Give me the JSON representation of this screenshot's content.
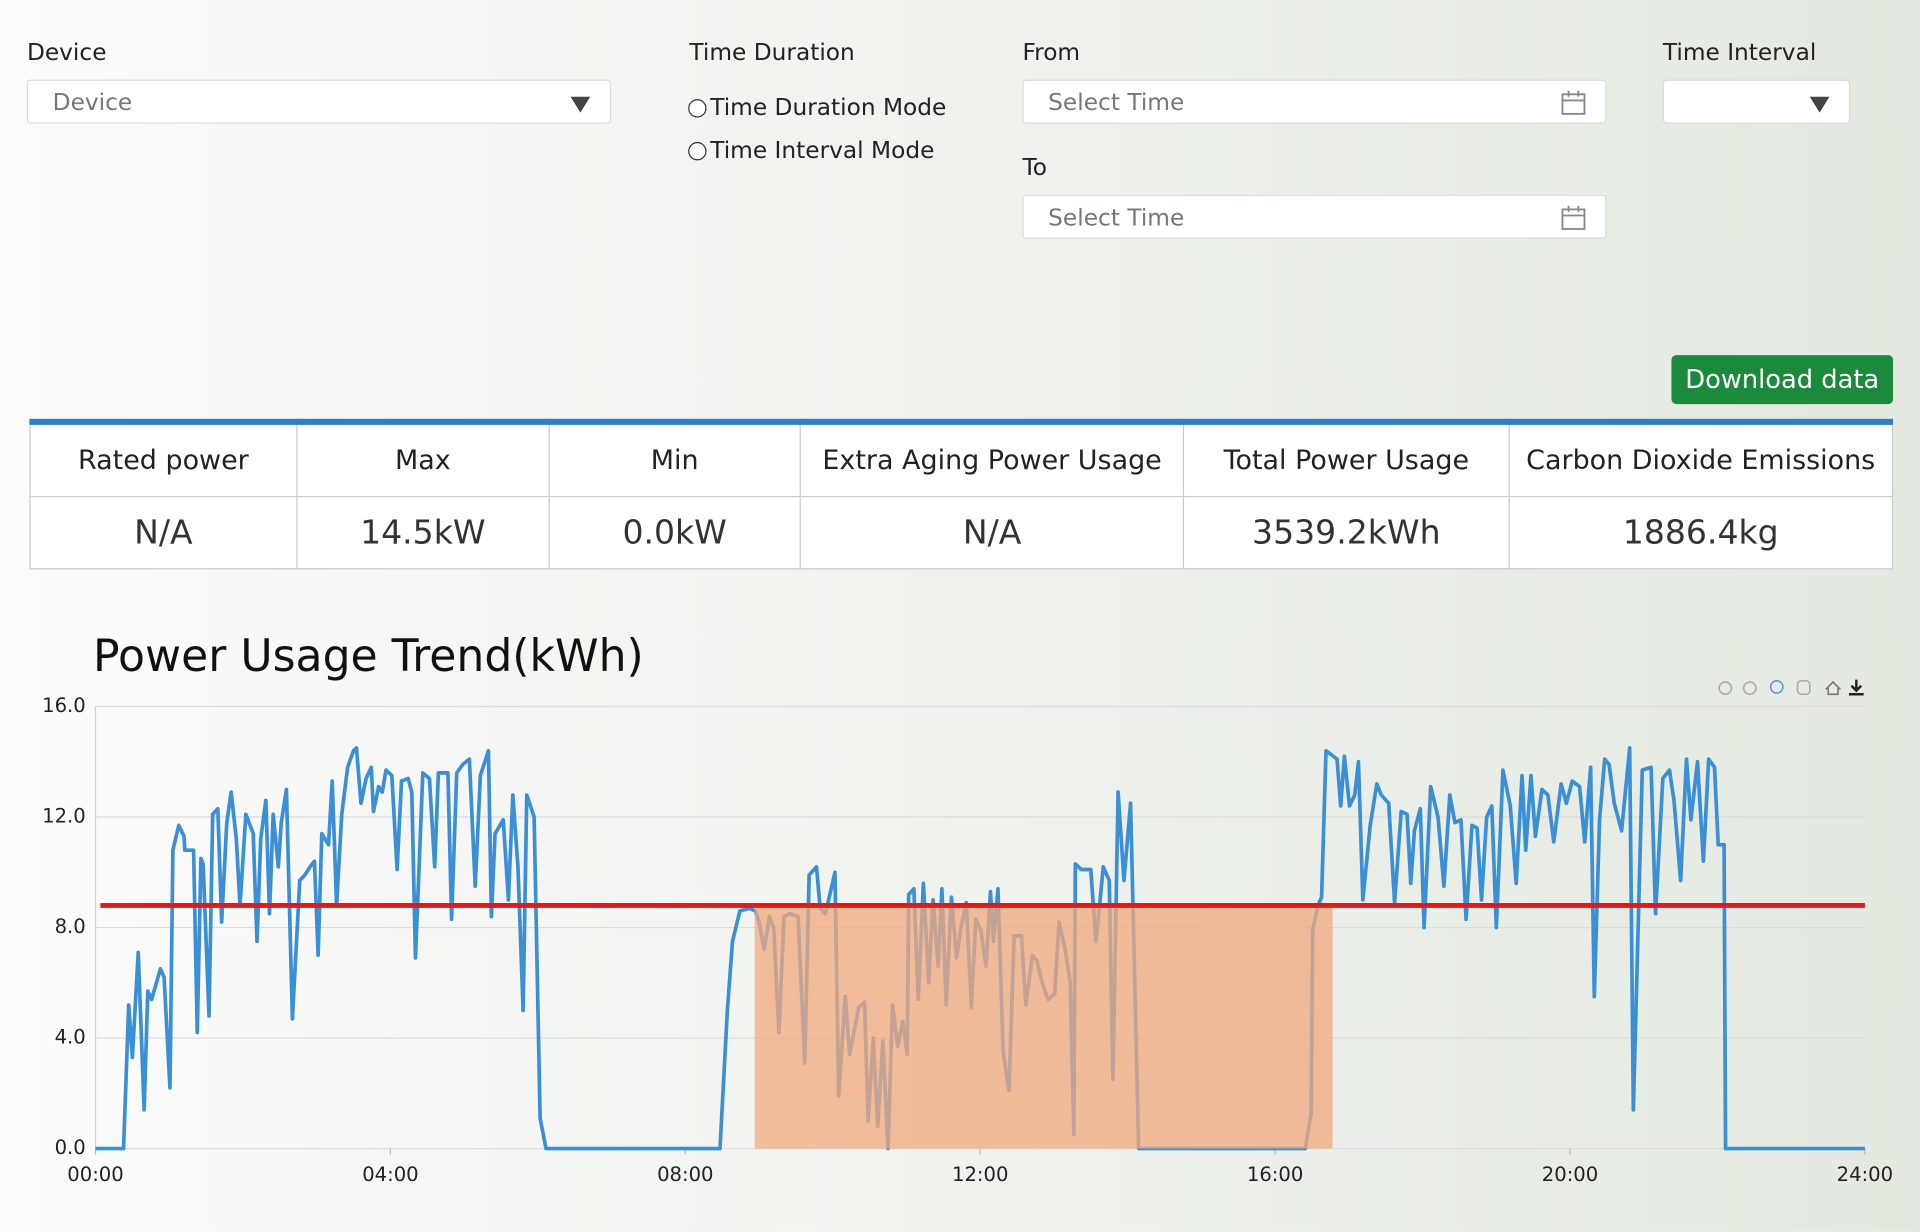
{
  "form": {
    "device": {
      "label": "Device",
      "placeholder": "Device"
    },
    "time_duration": {
      "label": "Time Duration",
      "options": [
        "Time Duration Mode",
        "Time Interval Mode"
      ]
    },
    "from": {
      "label": "From",
      "placeholder": "Select Time"
    },
    "to": {
      "label": "To",
      "placeholder": "Select Time"
    },
    "time_interval": {
      "label": "Time Interval"
    },
    "download_button": "Download data"
  },
  "table": {
    "headers": [
      "Rated power",
      "Max",
      "Min",
      "Extra Aging Power Usage",
      "Total Power Usage",
      "Carbon Dioxide Emissions"
    ],
    "rows": [
      [
        "N/A",
        "14.5kW",
        "0.0kW",
        "N/A",
        "3539.2kWh",
        "1886.4kg"
      ]
    ]
  },
  "chart_data": {
    "type": "line",
    "title": "Power Usage Trend(kWh)",
    "color": "#3a8fd6",
    "x": [
      0,
      0.38,
      0.45,
      0.5,
      0.58,
      0.66,
      0.71,
      0.76,
      0.88,
      0.93,
      1.01,
      1.05,
      1.13,
      1.2,
      1.21,
      1.33,
      1.38,
      1.43,
      1.46,
      1.54,
      1.59,
      1.66,
      1.71,
      1.78,
      1.84,
      1.91,
      1.96,
      2.04,
      2.14,
      2.19,
      2.24,
      2.31,
      2.36,
      2.41,
      2.48,
      2.52,
      2.59,
      2.67,
      2.77,
      2.84,
      2.91,
      2.97,
      3.02,
      3.07,
      3.16,
      3.21,
      3.27,
      3.34,
      3.42,
      3.5,
      3.54,
      3.6,
      3.67,
      3.74,
      3.77,
      3.84,
      3.89,
      3.94,
      4.02,
      4.09,
      4.15,
      4.24,
      4.29,
      4.34,
      4.44,
      4.53,
      4.6,
      4.65,
      4.78,
      4.83,
      4.9,
      4.98,
      5.07,
      5.15,
      5.22,
      5.33,
      5.37,
      5.42,
      5.53,
      5.6,
      5.66,
      5.73,
      5.8,
      5.85,
      5.95,
      6.03,
      6.11,
      8.47,
      8.57,
      8.64,
      8.74,
      8.87,
      8.95,
      9.0,
      9.07,
      9.14,
      9.2,
      9.27,
      9.34,
      9.42,
      9.53,
      9.62,
      9.68,
      9.78,
      9.83,
      9.9,
      10.03,
      10.08,
      10.17,
      10.23,
      10.28,
      10.35,
      10.43,
      10.48,
      10.55,
      10.61,
      10.68,
      10.75,
      10.81,
      10.88,
      10.95,
      11.01,
      11.03,
      11.1,
      11.16,
      11.23,
      11.3,
      11.36,
      11.43,
      11.48,
      11.54,
      11.61,
      11.68,
      11.74,
      11.81,
      11.88,
      11.94,
      12.01,
      12.08,
      12.14,
      12.18,
      12.24,
      12.31,
      12.39,
      12.46,
      12.56,
      12.62,
      12.71,
      12.77,
      12.84,
      12.92,
      13.01,
      13.07,
      13.16,
      13.22,
      13.27,
      13.29,
      13.37,
      13.5,
      13.57,
      13.62,
      13.67,
      13.75,
      13.8,
      13.87,
      13.95,
      14.04,
      14.15,
      16.41,
      16.49,
      16.51,
      16.58,
      16.63,
      16.69,
      16.84,
      16.89,
      16.94,
      17.01,
      17.08,
      17.13,
      17.19,
      17.29,
      17.38,
      17.44,
      17.54,
      17.62,
      17.71,
      17.79,
      17.84,
      17.89,
      17.97,
      18.02,
      18.11,
      18.21,
      18.29,
      18.37,
      18.44,
      18.52,
      18.59,
      18.67,
      18.74,
      18.8,
      18.87,
      18.94,
      19.0,
      19.09,
      19.19,
      19.27,
      19.35,
      19.4,
      19.47,
      19.53,
      19.62,
      19.7,
      19.78,
      19.88,
      19.95,
      20.03,
      20.13,
      20.2,
      20.28,
      20.33,
      20.4,
      20.47,
      20.53,
      20.6,
      20.7,
      20.81,
      20.86,
      20.98,
      21.1,
      21.16,
      21.26,
      21.35,
      21.41,
      21.5,
      21.58,
      21.64,
      21.73,
      21.81,
      21.88,
      21.96,
      22.01,
      22.09,
      22.11,
      24.0
    ],
    "values": [
      0,
      0,
      5.2,
      3.3,
      7.1,
      1.4,
      5.7,
      5.4,
      6.5,
      6.2,
      2.2,
      10.8,
      11.7,
      11.3,
      10.8,
      10.8,
      4.2,
      10.5,
      10.3,
      4.8,
      12.1,
      12.3,
      8.2,
      11.8,
      12.9,
      11.2,
      8.8,
      12.1,
      11.4,
      7.5,
      11.2,
      12.6,
      8.5,
      12.1,
      10.2,
      11.8,
      13.0,
      4.7,
      9.7,
      9.9,
      10.2,
      10.4,
      7.0,
      11.4,
      11.0,
      13.3,
      8.8,
      12.1,
      13.8,
      14.4,
      14.5,
      12.5,
      13.4,
      13.8,
      12.2,
      13.1,
      12.9,
      13.7,
      13.5,
      10.1,
      13.3,
      13.4,
      12.9,
      6.9,
      13.6,
      13.4,
      10.2,
      13.6,
      13.6,
      8.3,
      13.6,
      13.9,
      14.1,
      9.5,
      13.5,
      14.4,
      8.4,
      11.4,
      11.9,
      9.0,
      12.8,
      10.2,
      5.0,
      12.8,
      12.0,
      1.1,
      0,
      0,
      5.0,
      7.5,
      8.6,
      8.7,
      8.6,
      8.2,
      7.2,
      8.4,
      8.0,
      4.2,
      8.4,
      8.5,
      8.4,
      3.1,
      9.9,
      10.2,
      8.7,
      8.5,
      10.0,
      1.9,
      5.5,
      3.4,
      4.1,
      5.1,
      5.3,
      1.0,
      4.0,
      0.8,
      3.9,
      0,
      5.2,
      3.7,
      4.6,
      3.4,
      9.2,
      9.4,
      5.4,
      9.6,
      6.0,
      9.0,
      6.6,
      9.4,
      5.2,
      9.1,
      6.9,
      8.0,
      8.9,
      5.1,
      8.3,
      7.9,
      6.6,
      9.3,
      7.5,
      9.4,
      3.5,
      2.1,
      7.7,
      7.7,
      5.2,
      7.0,
      6.8,
      6.0,
      5.4,
      5.6,
      8.2,
      7.1,
      6.0,
      0.5,
      10.3,
      10.1,
      10.1,
      7.5,
      8.8,
      10.2,
      9.7,
      2.5,
      12.9,
      9.7,
      12.5,
      0,
      0,
      1.3,
      7.9,
      8.8,
      9.1,
      14.4,
      14.1,
      12.4,
      14.2,
      12.4,
      12.8,
      14.0,
      9.0,
      11.7,
      13.2,
      12.8,
      12.5,
      8.9,
      12.2,
      12.1,
      9.6,
      11.5,
      12.3,
      8.0,
      13.1,
      12.0,
      9.5,
      12.8,
      11.8,
      11.9,
      8.3,
      11.7,
      11.6,
      9.0,
      12.0,
      12.4,
      8.0,
      13.7,
      12.4,
      9.6,
      13.5,
      10.8,
      13.5,
      11.3,
      13.0,
      12.8,
      11.1,
      13.2,
      12.5,
      13.3,
      13.1,
      11.1,
      13.8,
      5.5,
      11.9,
      14.1,
      13.9,
      12.5,
      11.5,
      14.5,
      1.4,
      13.7,
      13.8,
      8.5,
      13.4,
      13.7,
      12.6,
      9.7,
      14.1,
      11.9,
      14.0,
      10.4,
      14.1,
      13.8,
      11.0,
      11.0,
      0,
      0
    ],
    "threshold": {
      "value": 8.8,
      "color": "#e0191b"
    },
    "highlight": {
      "x": [
        8.94,
        16.78
      ],
      "color": "#f2a87e"
    },
    "xlim": [
      0,
      24
    ],
    "xticks": [
      {
        "value": 0,
        "label": "00:00"
      },
      {
        "value": 4,
        "label": "04:00"
      },
      {
        "value": 8,
        "label": "08:00"
      },
      {
        "value": 12,
        "label": "12:00"
      },
      {
        "value": 16,
        "label": "16:00"
      },
      {
        "value": 20,
        "label": "20:00"
      },
      {
        "value": 24,
        "label": "24:00"
      }
    ],
    "ylim": [
      0,
      16
    ],
    "yticks": [
      {
        "value": 0,
        "label": "0.0"
      },
      {
        "value": 4,
        "label": "4.0"
      },
      {
        "value": 8,
        "label": "8.0"
      },
      {
        "value": 12,
        "label": "12.0"
      },
      {
        "value": 16,
        "label": "16.0"
      }
    ],
    "grid": true
  }
}
